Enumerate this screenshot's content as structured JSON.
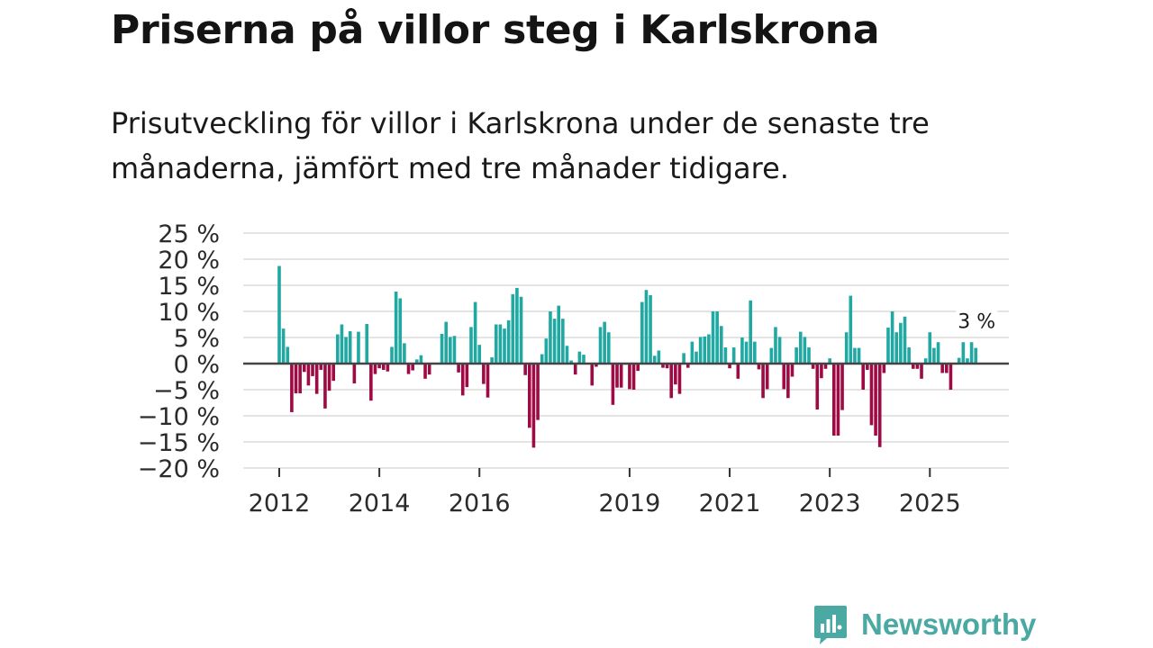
{
  "header": {
    "title": "Priserna på villor steg i Karlskrona",
    "subtitle": "Prisutveckling för villor i Karlskrona under de senaste tre månaderna, jämfört med tre månader tidigare."
  },
  "brand": {
    "name": "Newsworthy",
    "logo_icon": "newsworthy-logo-icon"
  },
  "colors": {
    "positive": "#20a8a2",
    "negative": "#9e0b44",
    "grid": "#dcdcdc",
    "zero_line": "#444444",
    "axis_text": "#2b2b2b",
    "brand": "#4aa9a2"
  },
  "chart_data": {
    "type": "bar",
    "title": "Priserna på villor steg i Karlskrona",
    "xlabel": "",
    "ylabel": "",
    "ylim": [
      -20,
      25
    ],
    "grid": true,
    "yticks": [
      25,
      20,
      15,
      10,
      5,
      0,
      -5,
      -10,
      -15,
      -20
    ],
    "ytick_labels": [
      "25 %",
      "20 %",
      "15 %",
      "10 %",
      "5 %",
      "0 %",
      "−5 %",
      "−10 %",
      "−15 %",
      "−20 %"
    ],
    "xticks": [
      {
        "label": "2012",
        "index": 0
      },
      {
        "label": "2014",
        "index": 24
      },
      {
        "label": "2016",
        "index": 48
      },
      {
        "label": "2019",
        "index": 84
      },
      {
        "label": "2021",
        "index": 108
      },
      {
        "label": "2023",
        "index": 132
      },
      {
        "label": "2025",
        "index": 156
      }
    ],
    "start": "2012-01",
    "frequency": "monthly",
    "values": [
      18.7,
      6.7,
      3.2,
      -9.3,
      -5.7,
      -5.7,
      -1.6,
      -4.2,
      -2.4,
      -5.8,
      -1.2,
      -8.6,
      -5.2,
      -3.3,
      5.6,
      7.5,
      5.1,
      6.2,
      -3.8,
      6.1,
      0,
      7.6,
      -7.1,
      -2.0,
      -0.9,
      -1.2,
      -1.5,
      3.2,
      13.8,
      12.5,
      3.9,
      -2.0,
      -1.3,
      0.8,
      1.6,
      -2.9,
      -2.1,
      0,
      0,
      5.7,
      8.0,
      5.1,
      5.3,
      -1.7,
      -6.1,
      -4.5,
      7.0,
      11.8,
      3.6,
      -3.9,
      -6.5,
      1.2,
      7.5,
      7.5,
      6.7,
      8.3,
      13.3,
      14.5,
      12.8,
      -2.2,
      -12.3,
      -16.1,
      -10.8,
      1.8,
      4.8,
      10.0,
      8.6,
      11.1,
      8.6,
      3.4,
      0.6,
      -2.1,
      2.3,
      1.7,
      0,
      -4.2,
      -0.6,
      7.0,
      8.0,
      6.0,
      -7.9,
      -4.6,
      -4.6,
      -0.2,
      -4.9,
      -5.0,
      -1.4,
      11.8,
      14.1,
      13.1,
      1.5,
      2.5,
      -0.8,
      -0.9,
      -6.6,
      -4.0,
      -5.8,
      2.0,
      -0.8,
      4.2,
      2.3,
      5.1,
      5.2,
      5.6,
      10.0,
      10.0,
      7.2,
      3.1,
      -0.9,
      3.1,
      -2.9,
      5.0,
      4.2,
      12.1,
      4.2,
      -1.1,
      -6.6,
      -4.9,
      3.0,
      7.0,
      5.1,
      -4.9,
      -6.6,
      -2.5,
      3.1,
      6.1,
      5.1,
      3.1,
      -1.0,
      -8.8,
      -2.8,
      -1.0,
      1.0,
      -13.8,
      -13.8,
      -8.9,
      6.0,
      13.0,
      3.0,
      3.0,
      -5.0,
      -1.2,
      -11.8,
      -13.8,
      -16.0,
      -1.8,
      6.9,
      10.0,
      6.0,
      7.8,
      9.0,
      3.1,
      -1.0,
      -1.0,
      -2.9,
      1.0,
      6.0,
      3.0,
      4.1,
      -1.8,
      -1.8,
      -5.0,
      0,
      1.1,
      4.1,
      1.0,
      4.1,
      3.0
    ],
    "annotation": {
      "label": "3 %",
      "value": 3
    }
  }
}
